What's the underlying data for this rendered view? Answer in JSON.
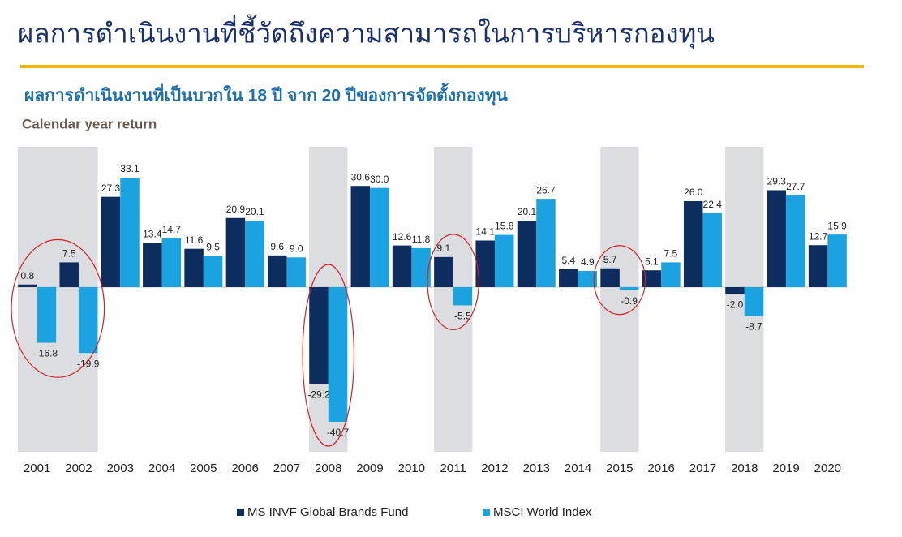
{
  "title": "ผลการดำเนินงานที่ชี้วัดถึงความสามารถในการบริหารกองทุน",
  "chart_data": {
    "type": "bar",
    "title": "ผลการดำเนินงานที่เป็นบวกใน 18 ปี จาก 20 ปีของการจัดตั้งกองทุน",
    "subtitle": "Calendar year return",
    "categories": [
      "2001",
      "2002",
      "2003",
      "2004",
      "2005",
      "2006",
      "2007",
      "2008",
      "2009",
      "2010",
      "2011",
      "2012",
      "2013",
      "2014",
      "2015",
      "2016",
      "2017",
      "2018",
      "2019",
      "2020"
    ],
    "series": [
      {
        "name": "MS INVF Global Brands Fund",
        "color": "#0d2d5e",
        "values": [
          0.8,
          7.5,
          27.3,
          13.4,
          11.6,
          20.9,
          9.6,
          -29.2,
          30.6,
          12.6,
          9.1,
          14.1,
          20.1,
          5.4,
          5.7,
          5.1,
          26.0,
          -2.0,
          29.3,
          12.7
        ],
        "value_labels": [
          "0.8",
          "7.5",
          "27.3",
          "13.4",
          "11.6",
          "20.9",
          "9.6",
          "-29.2",
          "30.6",
          "12.6",
          "9.1",
          "14.1",
          "20.1",
          "5.4",
          "5.7",
          "5.1",
          "26.0",
          "-2.0",
          "29.3",
          "12.7"
        ]
      },
      {
        "name": "MSCI World Index",
        "color": "#1aa3e0",
        "values": [
          -16.8,
          -19.9,
          33.1,
          14.7,
          9.5,
          20.1,
          9.0,
          -40.7,
          30.0,
          11.8,
          -5.5,
          15.8,
          26.7,
          4.9,
          -0.9,
          7.5,
          22.4,
          -8.7,
          27.7,
          15.9
        ],
        "value_labels": [
          "-16.8",
          "-19.9",
          "33.1",
          "14.7",
          "9.5",
          "20.1",
          "9.0",
          "-40.7",
          "30.0",
          "11.8",
          "-5.5",
          "15.8",
          "26.7",
          "4.9",
          "-0.9",
          "7.5",
          "22.4",
          "-8.7",
          "27.7",
          "15.9"
        ]
      }
    ]
  }
}
